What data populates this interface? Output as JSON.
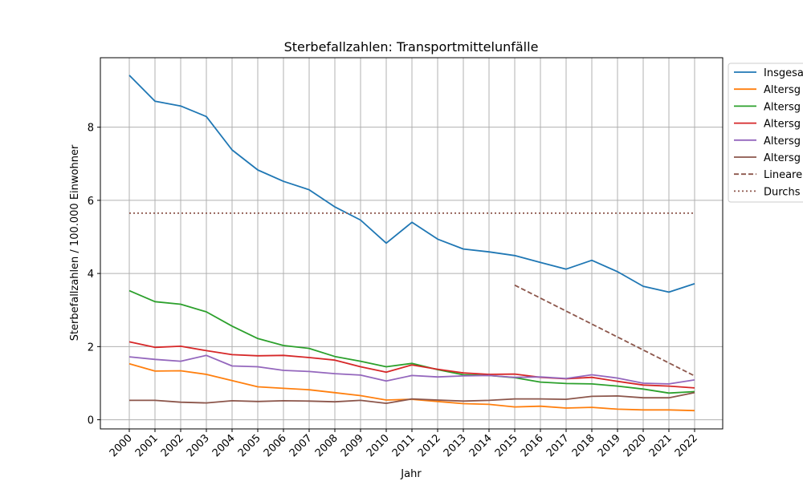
{
  "chart_data": {
    "type": "line",
    "title": "Sterbefallzahlen: Transportmittelunfälle",
    "xlabel": "Jahr",
    "ylabel": "Sterbefallzahlen / 100.000 Einwohner",
    "x": [
      "2000",
      "2001",
      "2002",
      "2003",
      "2004",
      "2005",
      "2006",
      "2007",
      "2008",
      "2009",
      "2010",
      "2011",
      "2012",
      "2013",
      "2014",
      "2015",
      "2016",
      "2017",
      "2018",
      "2019",
      "2020",
      "2021",
      "2022"
    ],
    "xlim": [
      2000,
      2022
    ],
    "ylim": [
      -0.25,
      9.9
    ],
    "yticks": [
      0,
      2,
      4,
      6,
      8
    ],
    "grid": true,
    "legend_position": "top-right (partly clipped)",
    "series": [
      {
        "name": "Insgesa",
        "color": "#1f77b4",
        "style": "solid",
        "values": [
          9.42,
          8.71,
          8.58,
          8.29,
          7.38,
          6.83,
          6.52,
          6.29,
          5.82,
          5.46,
          4.83,
          5.4,
          4.94,
          4.67,
          4.59,
          4.49,
          4.3,
          4.12,
          4.36,
          4.05,
          3.65,
          3.49,
          3.72
        ]
      },
      {
        "name": "Altersg",
        "color": "#ff7f0e",
        "style": "solid",
        "values": [
          1.53,
          1.33,
          1.34,
          1.24,
          1.07,
          0.9,
          0.86,
          0.82,
          0.74,
          0.66,
          0.54,
          0.56,
          0.5,
          0.44,
          0.42,
          0.35,
          0.37,
          0.32,
          0.34,
          0.29,
          0.27,
          0.27,
          0.25
        ]
      },
      {
        "name": "Altersg",
        "color": "#2ca02c",
        "style": "solid",
        "values": [
          3.53,
          3.23,
          3.16,
          2.95,
          2.56,
          2.22,
          2.03,
          1.95,
          1.73,
          1.6,
          1.45,
          1.54,
          1.37,
          1.23,
          1.21,
          1.15,
          1.03,
          0.99,
          0.98,
          0.92,
          0.84,
          0.73,
          0.77
        ]
      },
      {
        "name": "Altersg",
        "color": "#d62728",
        "style": "solid",
        "values": [
          2.13,
          1.98,
          2.01,
          1.89,
          1.78,
          1.75,
          1.76,
          1.7,
          1.63,
          1.45,
          1.3,
          1.5,
          1.38,
          1.28,
          1.24,
          1.25,
          1.16,
          1.12,
          1.16,
          1.05,
          0.95,
          0.92,
          0.87
        ]
      },
      {
        "name": "Altersg",
        "color": "#9467bd",
        "style": "solid",
        "values": [
          1.72,
          1.65,
          1.6,
          1.76,
          1.47,
          1.45,
          1.35,
          1.32,
          1.26,
          1.22,
          1.06,
          1.21,
          1.17,
          1.2,
          1.21,
          1.16,
          1.17,
          1.13,
          1.23,
          1.14,
          1.0,
          0.98,
          1.09
        ]
      },
      {
        "name": "Altersg",
        "color": "#8c564b",
        "style": "solid",
        "values": [
          0.53,
          0.53,
          0.48,
          0.46,
          0.52,
          0.5,
          0.52,
          0.51,
          0.49,
          0.53,
          0.45,
          0.57,
          0.54,
          0.51,
          0.53,
          0.57,
          0.57,
          0.56,
          0.64,
          0.65,
          0.6,
          0.6,
          0.74
        ]
      },
      {
        "name": "Lineare",
        "color": "#8c564b",
        "style": "dashed",
        "x": [
          "2015",
          "2022"
        ],
        "values": [
          3.68,
          1.2
        ]
      },
      {
        "name": "Durchs",
        "color": "#8c564b",
        "style": "dotted",
        "x": [
          "2000",
          "2022"
        ],
        "values": [
          5.65,
          5.65
        ]
      }
    ]
  }
}
